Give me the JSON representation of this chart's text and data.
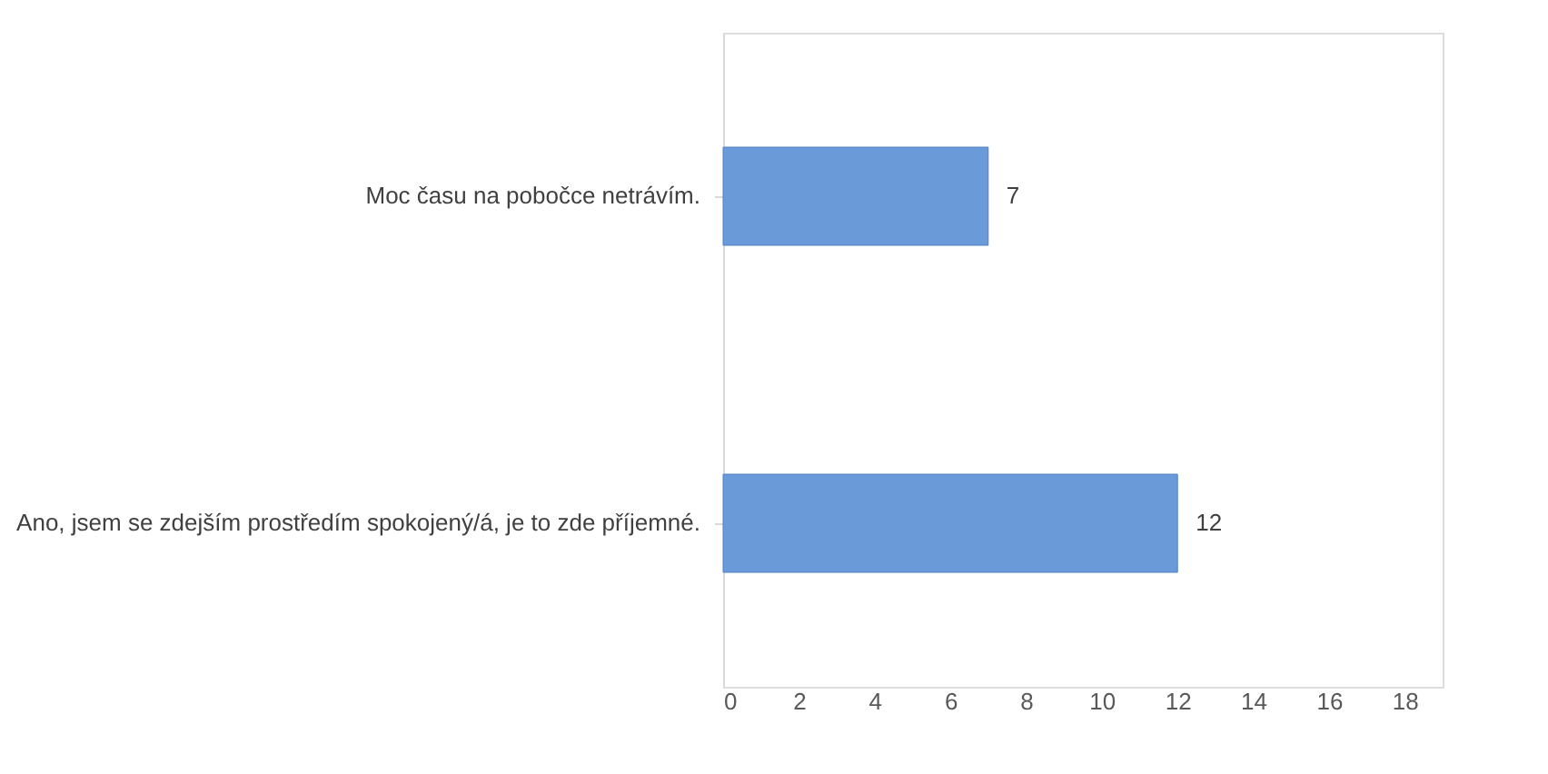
{
  "chart_data": {
    "type": "bar",
    "orientation": "horizontal",
    "categories": [
      "Moc času na pobočce netrávím.",
      "Ano, jsem se zdejším prostředím spokojený/á, je to zde příjemné."
    ],
    "values": [
      7,
      12
    ],
    "color": "#6a9bd8",
    "xlim": [
      0,
      19
    ],
    "xticks": [
      0,
      2,
      4,
      6,
      8,
      10,
      12,
      14,
      16,
      18
    ],
    "grid": false,
    "data_labels": true
  }
}
